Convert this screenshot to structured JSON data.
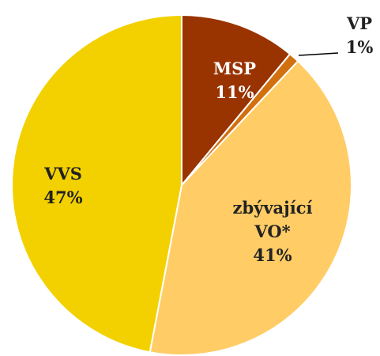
{
  "chart_data": {
    "type": "pie",
    "categories": [
      "MSP",
      "VP",
      "zbývající VO*",
      "VVS"
    ],
    "values": [
      11,
      1,
      41,
      47
    ],
    "value_labels": [
      "11%",
      "1%",
      "41%",
      "47%"
    ],
    "colors": [
      "#993300",
      "#d2700f",
      "#ffcc66",
      "#f3d100"
    ]
  }
}
